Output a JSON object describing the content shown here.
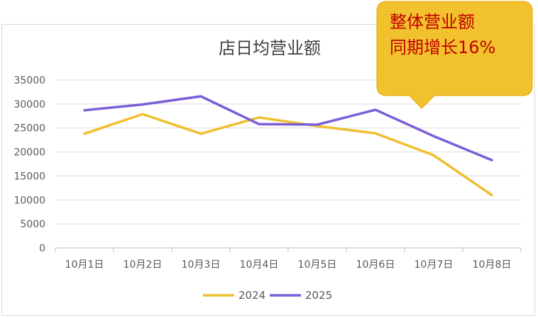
{
  "chart_data": {
    "type": "line",
    "title": "店日均营业额",
    "categories": [
      "10月1日",
      "10月2日",
      "10月3日",
      "10月4日",
      "10月5日",
      "10月6日",
      "10月7日",
      "10月8日"
    ],
    "series": [
      {
        "name": "2024",
        "color": "#f0bf30",
        "values": [
          23800,
          27900,
          23800,
          27200,
          25400,
          23900,
          19300,
          11000
        ]
      },
      {
        "name": "2025",
        "color": "#7b5fd9",
        "values": [
          28700,
          29900,
          31600,
          25800,
          25700,
          28800,
          23300,
          18300
        ]
      }
    ],
    "ylim": [
      0,
      35000
    ],
    "yticks": [
      "0",
      "5000",
      "10000",
      "15000",
      "20000",
      "25000",
      "30000",
      "35000"
    ],
    "grid": true,
    "legend_position": "bottom",
    "annotation": {
      "lines": [
        "整体营业额",
        "同期增长16%"
      ],
      "fill": "#f2c12e",
      "text_color": "#c00000"
    }
  }
}
